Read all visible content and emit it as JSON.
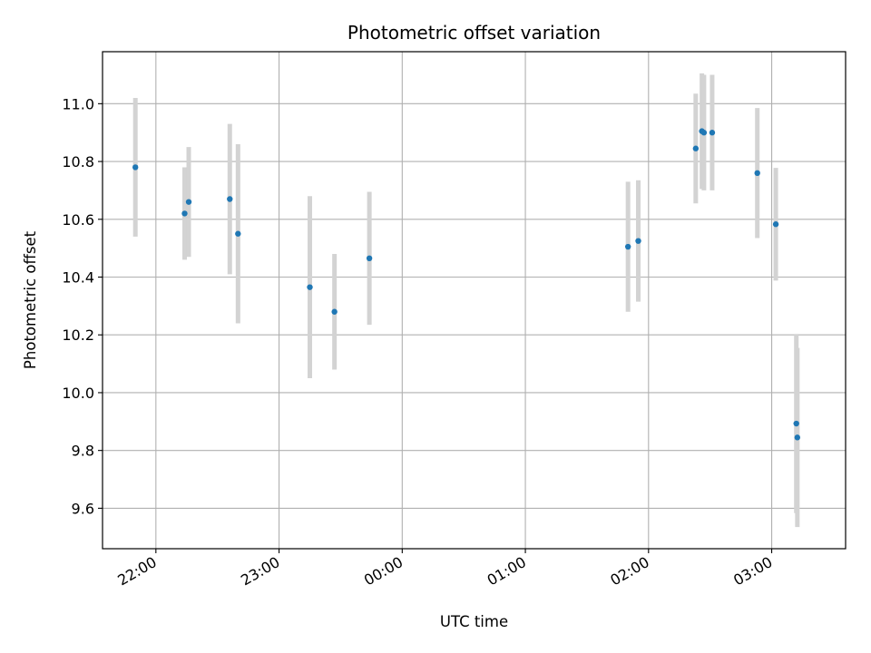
{
  "chart_data": {
    "type": "scatter",
    "title": "Photometric offset variation",
    "xlabel": "UTC time",
    "ylabel": "Photometric offset",
    "grid": true,
    "legend": "none",
    "xlim": [
      "21:34",
      "03:36"
    ],
    "ylim": [
      9.46,
      11.18
    ],
    "x_ticks": [
      "22:00",
      "23:00",
      "00:00",
      "01:00",
      "02:00",
      "03:00"
    ],
    "y_ticks": [
      9.6,
      9.8,
      10.0,
      10.2,
      10.4,
      10.6,
      10.8,
      11.0
    ],
    "y_tick_labels": [
      "9.6",
      "9.8",
      "10.0",
      "10.2",
      "10.4",
      "10.6",
      "10.8",
      "11.0"
    ],
    "colors": {
      "point": "#1f77b4",
      "errorbar": "#d3d3d3",
      "grid": "#b0b0b0"
    },
    "series": [
      {
        "points": [
          {
            "x": "21:50",
            "y": 10.78,
            "yerr": 0.24
          },
          {
            "x": "22:14",
            "y": 10.62,
            "yerr": 0.16
          },
          {
            "x": "22:16",
            "y": 10.66,
            "yerr": 0.19
          },
          {
            "x": "22:36",
            "y": 10.67,
            "yerr": 0.26
          },
          {
            "x": "22:40",
            "y": 10.55,
            "yerr": 0.31
          },
          {
            "x": "23:15",
            "y": 10.365,
            "yerr": 0.315
          },
          {
            "x": "23:27",
            "y": 10.28,
            "yerr": 0.2
          },
          {
            "x": "23:44",
            "y": 10.465,
            "yerr": 0.23
          },
          {
            "x": "01:50",
            "y": 10.505,
            "yerr": 0.225
          },
          {
            "x": "01:55",
            "y": 10.525,
            "yerr": 0.21
          },
          {
            "x": "02:23",
            "y": 10.845,
            "yerr": 0.19
          },
          {
            "x": "02:26",
            "y": 10.905,
            "yerr": 0.2
          },
          {
            "x": "02:27",
            "y": 10.9,
            "yerr": 0.2
          },
          {
            "x": "02:31",
            "y": 10.9,
            "yerr": 0.2
          },
          {
            "x": "02:53",
            "y": 10.76,
            "yerr": 0.225
          },
          {
            "x": "03:02",
            "y": 10.583,
            "yerr": 0.195
          },
          {
            "x": "03:12",
            "y": 9.893,
            "yerr": 0.31
          },
          {
            "x": "03:12.5",
            "y": 9.845,
            "yerr": 0.31
          }
        ]
      }
    ]
  }
}
